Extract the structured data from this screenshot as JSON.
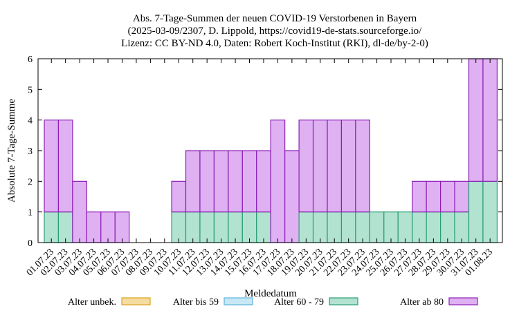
{
  "chart_data": {
    "type": "bar",
    "stacked": true,
    "title_lines": [
      "Abs. 7-Tage-Summen der neuen COVID-19 Verstorbenen in Bayern",
      "(2025-03-09/2307, D. Lippold, https://covid19-de-stats.sourceforge.io/",
      "Lizenz: CC BY-ND 4.0, Daten: Robert Koch-Institut (RKI), dl-de/by-2-0)"
    ],
    "xlabel": "Meldedatum",
    "ylabel": "Absolute 7-Tage-Summe",
    "ylim": [
      0,
      6
    ],
    "yticks": [
      "0",
      "1",
      "2",
      "3",
      "4",
      "5",
      "6"
    ],
    "grid": false,
    "legend_position": "bottom",
    "categories": [
      "01.07.23",
      "02.07.23",
      "03.07.23",
      "04.07.23",
      "05.07.23",
      "06.07.23",
      "07.07.23",
      "08.07.23",
      "09.07.23",
      "10.07.23",
      "11.07.23",
      "12.07.23",
      "13.07.23",
      "14.07.23",
      "15.07.23",
      "16.07.23",
      "17.07.23",
      "18.07.23",
      "19.07.23",
      "20.07.23",
      "21.07.23",
      "22.07.23",
      "23.07.23",
      "24.07.23",
      "25.07.23",
      "26.07.23",
      "27.07.23",
      "28.07.23",
      "29.07.23",
      "30.07.23",
      "31.07.23",
      "01.08.23"
    ],
    "series": [
      {
        "name": "Alter unbek.",
        "color": "#f5dca0",
        "stroke": "#d9a21b",
        "values": [
          0,
          0,
          0,
          0,
          0,
          0,
          0,
          0,
          0,
          0,
          0,
          0,
          0,
          0,
          0,
          0,
          0,
          0,
          0,
          0,
          0,
          0,
          0,
          0,
          0,
          0,
          0,
          0,
          0,
          0,
          0,
          0
        ]
      },
      {
        "name": "Alter bis 59",
        "color": "#c6e8f5",
        "stroke": "#5fb2dc",
        "values": [
          0,
          0,
          0,
          0,
          0,
          0,
          0,
          0,
          0,
          0,
          0,
          0,
          0,
          0,
          0,
          0,
          0,
          0,
          0,
          0,
          0,
          0,
          0,
          0,
          0,
          0,
          0,
          0,
          0,
          0,
          0,
          0
        ]
      },
      {
        "name": "Alter 60 - 79",
        "color": "#b2e2d0",
        "stroke": "#2a9d74",
        "values": [
          1,
          1,
          0,
          0,
          0,
          0,
          0,
          0,
          0,
          1,
          1,
          1,
          1,
          1,
          1,
          1,
          0,
          0,
          1,
          1,
          1,
          1,
          1,
          1,
          1,
          1,
          1,
          1,
          1,
          1,
          2,
          2
        ]
      },
      {
        "name": "Alter ab 80",
        "color": "#dfb0f2",
        "stroke": "#8b1fb5",
        "values": [
          3,
          3,
          2,
          1,
          1,
          1,
          0,
          0,
          0,
          1,
          2,
          2,
          2,
          2,
          2,
          2,
          4,
          3,
          3,
          3,
          3,
          3,
          3,
          0,
          0,
          0,
          1,
          1,
          1,
          1,
          4,
          4
        ]
      }
    ]
  }
}
